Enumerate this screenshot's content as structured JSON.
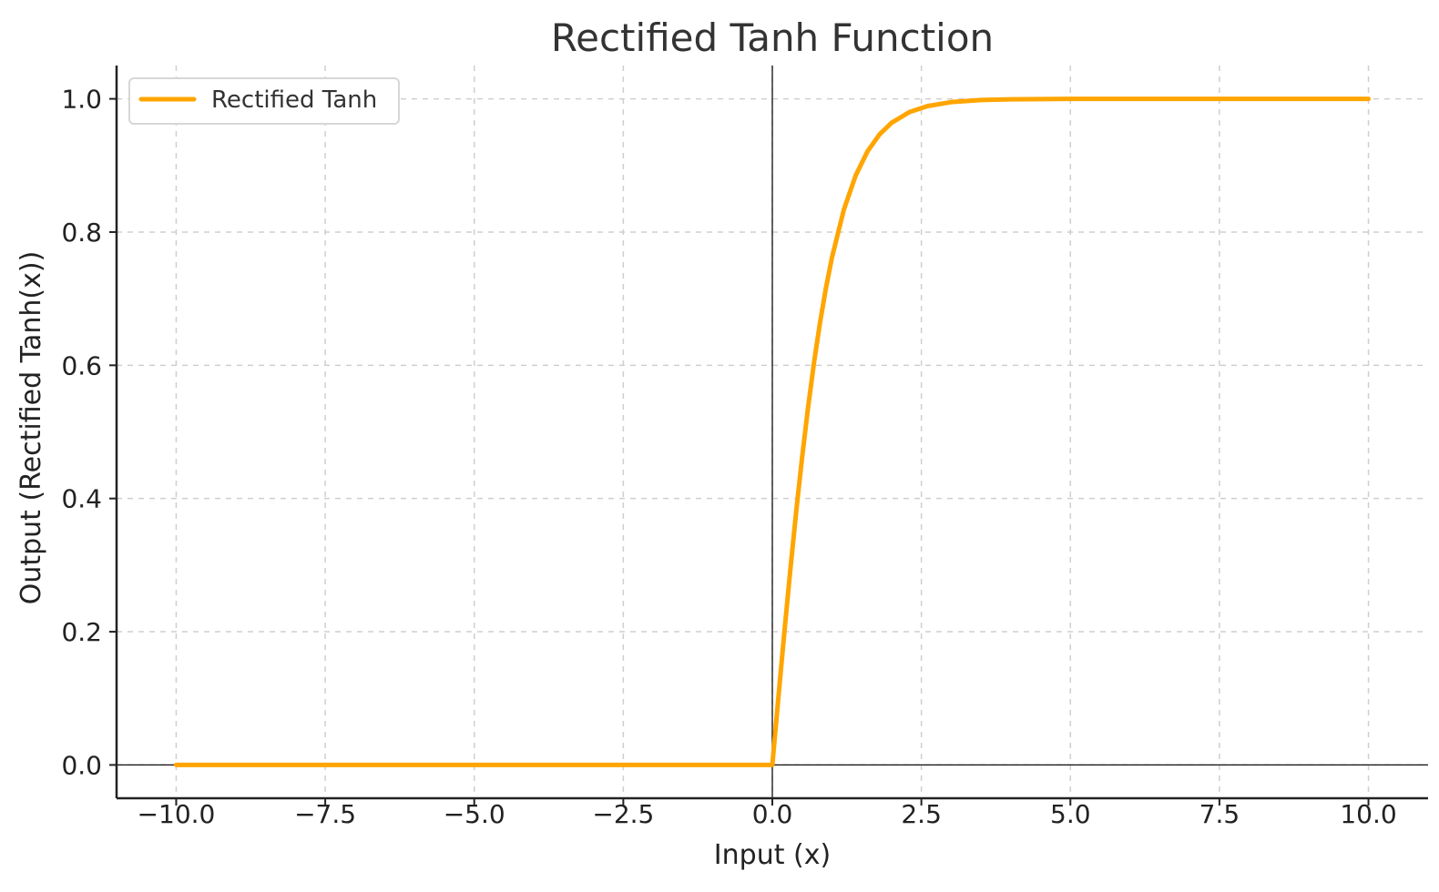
{
  "chart_data": {
    "type": "line",
    "title": "Rectified Tanh Function",
    "xlabel": "Input (x)",
    "ylabel": "Output (Rectified Tanh(x))",
    "xlim": [
      -11,
      11
    ],
    "ylim": [
      -0.05,
      1.05
    ],
    "xticks": [
      -10,
      -7.5,
      -5,
      -2.5,
      0,
      2.5,
      5,
      7.5,
      10
    ],
    "xtick_labels": [
      "−10.0",
      "−7.5",
      "−5.0",
      "−2.5",
      "0.0",
      "2.5",
      "5.0",
      "7.5",
      "10.0"
    ],
    "yticks": [
      0,
      0.2,
      0.4,
      0.6,
      0.8,
      1.0
    ],
    "ytick_labels": [
      "0.0",
      "0.2",
      "0.4",
      "0.6",
      "0.8",
      "1.0"
    ],
    "grid": true,
    "legend": {
      "position": "top-left"
    },
    "series": [
      {
        "name": "Rectified Tanh",
        "color": "#FFA500",
        "x": [
          -10,
          -7.5,
          -5,
          -2.5,
          -1,
          -0.5,
          0,
          0.1,
          0.2,
          0.3,
          0.4,
          0.5,
          0.6,
          0.7,
          0.8,
          0.9,
          1.0,
          1.2,
          1.4,
          1.6,
          1.8,
          2.0,
          2.3,
          2.6,
          3.0,
          3.5,
          4.0,
          5.0,
          6.0,
          7.5,
          10
        ],
        "y": [
          0,
          0,
          0,
          0,
          0,
          0,
          0,
          0.0997,
          0.1974,
          0.2913,
          0.3799,
          0.4621,
          0.537,
          0.6044,
          0.664,
          0.7163,
          0.7616,
          0.8337,
          0.8854,
          0.9217,
          0.9468,
          0.964,
          0.9801,
          0.989,
          0.9951,
          0.9982,
          0.9993,
          0.9999,
          1.0,
          1.0,
          1.0
        ]
      }
    ]
  }
}
